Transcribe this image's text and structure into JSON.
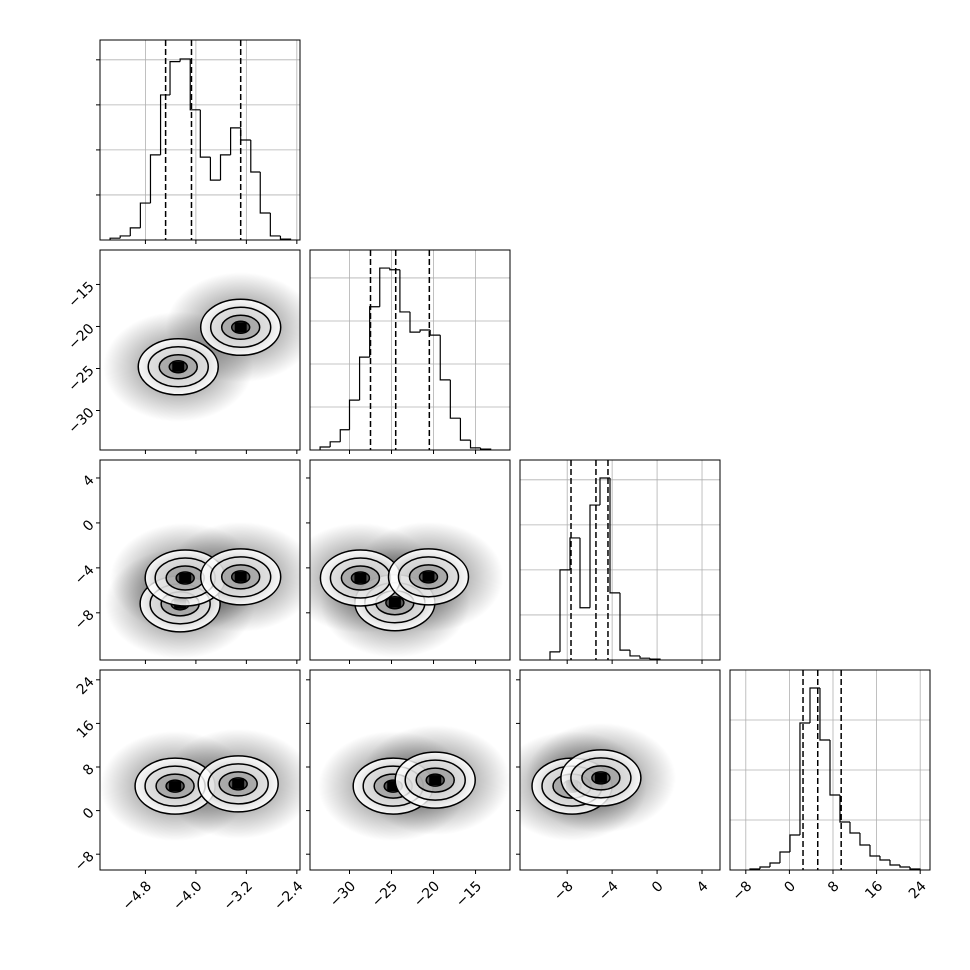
{
  "chart_data": {
    "type": "corner",
    "params": [
      {
        "lim": [
          -5.52,
          -2.35
        ],
        "ticks": [
          {
            "value": -4.8,
            "label": "−4.8"
          },
          {
            "value": -4.0,
            "label": "−4.0"
          },
          {
            "value": -3.2,
            "label": "−3.2"
          },
          {
            "value": -2.4,
            "label": "−2.4"
          }
        ],
        "quantiles": [
          -4.48,
          -4.07,
          -3.29
        ],
        "hist": {
          "bins": [
            -5.36,
            -5.2,
            -5.04,
            -4.88,
            -4.72,
            -4.56,
            -4.41,
            -4.25,
            -4.09,
            -3.93,
            -3.77,
            -3.61,
            -3.45,
            -3.29,
            -3.13,
            -2.98,
            -2.82,
            -2.66,
            -2.5
          ],
          "values": [
            4,
            9,
            27,
            82,
            189,
            322,
            396,
            402,
            289,
            184,
            133,
            189,
            249,
            222,
            151,
            60,
            9,
            2
          ],
          "ylim": [
            0,
            444
          ],
          "yticks": [
            100,
            200,
            300,
            400
          ]
        }
      },
      {
        "lim": [
          -34.7,
          -10.9
        ],
        "ticks": [
          {
            "value": -30,
            "label": "−30"
          },
          {
            "value": -25,
            "label": "−25"
          },
          {
            "value": -20,
            "label": "−20"
          },
          {
            "value": -15,
            "label": "−15"
          }
        ],
        "quantiles": [
          -27.5,
          -24.5,
          -20.5
        ],
        "hist": {
          "bins": [
            -33.5,
            -32.3,
            -31.1,
            -30.0,
            -28.8,
            -27.6,
            -26.4,
            -25.2,
            -24.0,
            -22.8,
            -21.6,
            -20.4,
            -19.2,
            -18.0,
            -16.8,
            -15.6,
            -14.4,
            -13.2
          ],
          "values": [
            7,
            19,
            47,
            116,
            216,
            333,
            423,
            419,
            321,
            274,
            279,
            267,
            163,
            74,
            23,
            5,
            2
          ],
          "ylim": [
            0,
            465
          ],
          "yticks": [
            100,
            200,
            300,
            400
          ]
        }
      },
      {
        "lim": [
          -12.2,
          5.6
        ],
        "ticks": [
          {
            "value": -8,
            "label": "−8"
          },
          {
            "value": -4,
            "label": "−4"
          },
          0,
          4
        ],
        "quantiles": [
          -7.66,
          -5.44,
          -4.37
        ],
        "hist": {
          "bins": [
            -9.53,
            -8.64,
            -7.75,
            -6.86,
            -5.97,
            -5.08,
            -4.19,
            -3.3,
            -2.41,
            -1.52,
            -0.63,
            0.26
          ],
          "values": [
            18,
            200,
            271,
            116,
            344,
            404,
            149,
            22,
            9,
            4,
            2
          ],
          "ylim": [
            0,
            444
          ],
          "yticks": [
            100,
            200,
            300,
            400
          ]
        }
      },
      {
        "lim": [
          -10.9,
          25.8
        ],
        "ticks": [
          {
            "value": -8,
            "label": "−8"
          },
          0,
          8,
          16,
          24
        ],
        "quantiles": [
          2.5,
          5.2,
          9.5
        ],
        "hist": {
          "bins": [
            -7.23,
            -5.4,
            -3.56,
            -1.73,
            0.11,
            1.94,
            3.78,
            5.61,
            7.45,
            9.28,
            11.12,
            12.95,
            14.79,
            16.62,
            18.46,
            20.29,
            22.13,
            23.96
          ],
          "values": [
            2,
            6,
            14,
            36,
            70,
            294,
            364,
            260,
            150,
            96,
            74,
            50,
            28,
            20,
            10,
            6,
            2
          ],
          "ylim": [
            0,
            400
          ],
          "yticks": [
            100,
            200,
            300
          ]
        }
      }
    ],
    "pairs": [
      {
        "x": [
          -4.28,
          -3.29
        ],
        "y": [
          -24.8,
          -20.1
        ]
      },
      {
        "x": [
          -4.25,
          -4.17,
          -3.29
        ],
        "y": [
          -7.2,
          -4.9,
          -4.8
        ]
      },
      {
        "x": [
          -24.6,
          -28.7,
          -20.6
        ],
        "y": [
          -7.1,
          -4.9,
          -4.8
        ]
      },
      {
        "x": [
          -4.33,
          -3.33
        ],
        "y": [
          4.5,
          4.9
        ]
      },
      {
        "x": [
          -24.8,
          -19.8
        ],
        "y": [
          4.5,
          5.6
        ]
      },
      {
        "x": [
          -7.57,
          -5.0
        ],
        "y": [
          4.5,
          6.0
        ]
      }
    ],
    "grid": true
  }
}
